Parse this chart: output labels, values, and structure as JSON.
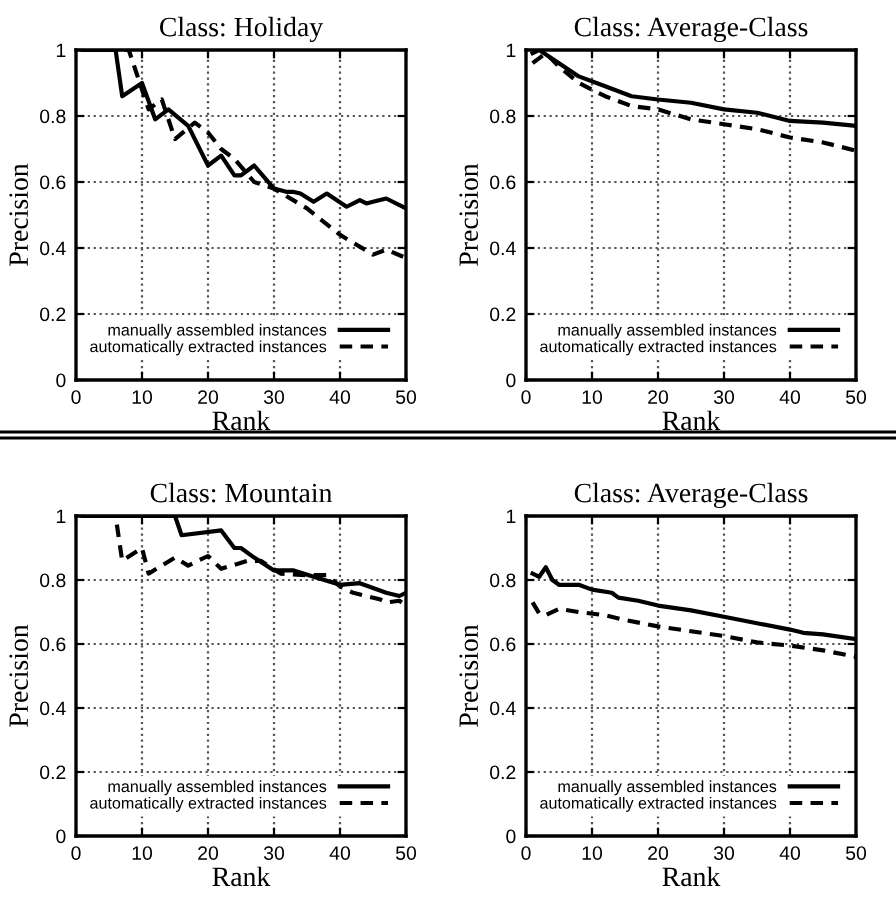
{
  "chart_data": [
    {
      "type": "line",
      "title": "Class: Holiday",
      "xlabel": "Rank",
      "ylabel": "Precision",
      "xlim": [
        0,
        50
      ],
      "ylim": [
        0,
        1
      ],
      "xticks": [
        0,
        10,
        20,
        30,
        40,
        50
      ],
      "yticks": [
        0,
        0.2,
        0.4,
        0.6,
        0.8,
        1
      ],
      "grid": true,
      "legend": "bottom right",
      "marker": "none",
      "series": [
        {
          "name": "manually assembled instances",
          "color": "#000000",
          "line_style": "solid",
          "x": [
            1,
            6,
            7,
            10,
            12,
            14,
            17,
            20,
            22,
            24,
            25,
            27,
            30,
            32,
            33,
            34,
            36,
            38,
            41,
            43,
            44,
            45,
            47,
            50
          ],
          "values": [
            1.0,
            1.0,
            0.86,
            0.9,
            0.79,
            0.82,
            0.77,
            0.65,
            0.68,
            0.62,
            0.62,
            0.65,
            0.58,
            0.57,
            0.57,
            0.565,
            0.54,
            0.565,
            0.525,
            0.545,
            0.535,
            0.54,
            0.55,
            0.52
          ]
        },
        {
          "name": "automatically extracted instances",
          "color": "#000000",
          "line_style": "dashed",
          "x": [
            1,
            8,
            10,
            11,
            13,
            15,
            18,
            20,
            22,
            24,
            27,
            30,
            35,
            40,
            45,
            47,
            50
          ],
          "values": [
            1.0,
            1.0,
            0.88,
            0.82,
            0.85,
            0.73,
            0.78,
            0.75,
            0.7,
            0.67,
            0.6,
            0.58,
            0.52,
            0.44,
            0.38,
            0.395,
            0.37
          ]
        }
      ]
    },
    {
      "type": "line",
      "title": "Class: Average-Class",
      "xlabel": "Rank",
      "ylabel": "Precision",
      "xlim": [
        0,
        50
      ],
      "ylim": [
        0,
        1
      ],
      "xticks": [
        0,
        10,
        20,
        30,
        40,
        50
      ],
      "yticks": [
        0,
        0.2,
        0.4,
        0.6,
        0.8,
        1
      ],
      "grid": true,
      "legend": "bottom right",
      "marker": "none",
      "series": [
        {
          "name": "manually assembled instances",
          "color": "#000000",
          "line_style": "solid",
          "x": [
            1,
            2,
            5,
            8,
            12,
            16,
            20,
            25,
            30,
            35,
            40,
            45,
            50
          ],
          "values": [
            0.99,
            1.0,
            0.96,
            0.92,
            0.89,
            0.86,
            0.85,
            0.84,
            0.82,
            0.81,
            0.785,
            0.78,
            0.77
          ]
        },
        {
          "name": "automatically extracted instances",
          "color": "#000000",
          "line_style": "dashed",
          "x": [
            1,
            3,
            5,
            8,
            12,
            16,
            20,
            25,
            30,
            35,
            40,
            45,
            50
          ],
          "values": [
            0.96,
            0.99,
            0.95,
            0.9,
            0.86,
            0.83,
            0.82,
            0.79,
            0.775,
            0.76,
            0.735,
            0.72,
            0.695
          ]
        }
      ]
    },
    {
      "type": "line",
      "title": "Class: Mountain",
      "xlabel": "Rank",
      "ylabel": "Precision",
      "xlim": [
        0,
        50
      ],
      "ylim": [
        0,
        1
      ],
      "xticks": [
        0,
        10,
        20,
        30,
        40,
        50
      ],
      "yticks": [
        0,
        0.2,
        0.4,
        0.6,
        0.8,
        1
      ],
      "grid": true,
      "legend": "bottom right",
      "marker": "none",
      "series": [
        {
          "name": "manually assembled instances",
          "color": "#000000",
          "line_style": "solid",
          "x": [
            1,
            15,
            16,
            22,
            24,
            25,
            27,
            30,
            33,
            36,
            40,
            43,
            47,
            49,
            50
          ],
          "values": [
            1.0,
            1.0,
            0.94,
            0.955,
            0.9,
            0.9,
            0.87,
            0.83,
            0.83,
            0.81,
            0.785,
            0.79,
            0.76,
            0.75,
            0.76
          ]
        },
        {
          "name": "automatically extracted instances",
          "color": "#000000",
          "line_style": "dashed",
          "x": [
            1,
            6,
            7,
            10,
            11,
            15,
            17,
            20,
            22,
            26,
            28,
            31,
            35,
            38,
            40,
            42,
            46,
            47,
            49,
            50
          ],
          "values": [
            1.0,
            1.0,
            0.86,
            0.9,
            0.82,
            0.87,
            0.845,
            0.875,
            0.835,
            0.86,
            0.86,
            0.82,
            0.815,
            0.815,
            0.78,
            0.76,
            0.74,
            0.73,
            0.735,
            0.72
          ]
        }
      ]
    },
    {
      "type": "line",
      "title": "Class: Average-Class",
      "xlabel": "Rank",
      "ylabel": "Precision",
      "xlim": [
        0,
        50
      ],
      "ylim": [
        0,
        1
      ],
      "xticks": [
        0,
        10,
        20,
        30,
        40,
        50
      ],
      "yticks": [
        0,
        0.2,
        0.4,
        0.6,
        0.8,
        1
      ],
      "grid": true,
      "legend": "bottom right",
      "marker": "none",
      "series": [
        {
          "name": "manually assembled instances",
          "color": "#000000",
          "line_style": "solid",
          "x": [
            1,
            2,
            3,
            4,
            5,
            8,
            10,
            13,
            14,
            17,
            20,
            25,
            30,
            35,
            40,
            42,
            45,
            50
          ],
          "values": [
            0.82,
            0.81,
            0.84,
            0.8,
            0.785,
            0.785,
            0.77,
            0.76,
            0.745,
            0.735,
            0.72,
            0.705,
            0.685,
            0.665,
            0.645,
            0.635,
            0.63,
            0.615
          ]
        },
        {
          "name": "automatically extracted instances",
          "color": "#000000",
          "line_style": "dashed",
          "x": [
            1,
            2,
            3,
            5,
            8,
            12,
            15,
            20,
            25,
            30,
            35,
            40,
            45,
            50
          ],
          "values": [
            0.73,
            0.695,
            0.69,
            0.71,
            0.7,
            0.69,
            0.675,
            0.655,
            0.64,
            0.625,
            0.605,
            0.595,
            0.58,
            0.56
          ]
        }
      ]
    }
  ]
}
